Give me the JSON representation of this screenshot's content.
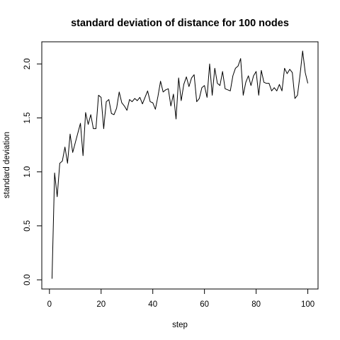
{
  "chart_data": {
    "type": "line",
    "title": "standard deviation of distance for 100 nodes",
    "xlabel": "step",
    "ylabel": "standard deviation",
    "xlim": [
      -2.96,
      103.96
    ],
    "ylim": [
      -0.085,
      2.205
    ],
    "grid": false,
    "legend": "none",
    "xticks": [
      {
        "value": 0,
        "label": "0"
      },
      {
        "value": 20,
        "label": "20"
      },
      {
        "value": 40,
        "label": "40"
      },
      {
        "value": 60,
        "label": "60"
      },
      {
        "value": 80,
        "label": "80"
      },
      {
        "value": 100,
        "label": "100"
      }
    ],
    "yticks": [
      {
        "value": 0.0,
        "label": "0.0"
      },
      {
        "value": 0.5,
        "label": "0.5"
      },
      {
        "value": 1.0,
        "label": "1.0"
      },
      {
        "value": 1.5,
        "label": "1.5"
      },
      {
        "value": 2.0,
        "label": "2.0"
      }
    ],
    "series": [
      {
        "color": "#000000",
        "x": [
          1,
          2,
          3,
          4,
          5,
          6,
          7,
          8,
          9,
          10,
          11,
          12,
          13,
          14,
          15,
          16,
          17,
          18,
          19,
          20,
          21,
          22,
          23,
          24,
          25,
          26,
          27,
          28,
          29,
          30,
          31,
          32,
          33,
          34,
          35,
          36,
          37,
          38,
          39,
          40,
          41,
          42,
          43,
          44,
          45,
          46,
          47,
          48,
          49,
          50,
          51,
          52,
          53,
          54,
          55,
          56,
          57,
          58,
          59,
          60,
          61,
          62,
          63,
          64,
          65,
          66,
          67,
          68,
          69,
          70,
          71,
          72,
          73,
          74,
          75,
          76,
          77,
          78,
          79,
          80,
          81,
          82,
          83,
          84,
          85,
          86,
          87,
          88,
          89,
          90,
          91,
          92,
          93,
          94,
          95,
          96,
          97,
          98,
          99,
          100
        ],
        "y": [
          0.01,
          0.99,
          0.77,
          1.08,
          1.1,
          1.23,
          1.08,
          1.35,
          1.18,
          1.27,
          1.36,
          1.45,
          1.15,
          1.55,
          1.44,
          1.53,
          1.4,
          1.4,
          1.71,
          1.69,
          1.4,
          1.65,
          1.67,
          1.54,
          1.53,
          1.59,
          1.74,
          1.64,
          1.61,
          1.57,
          1.67,
          1.65,
          1.68,
          1.66,
          1.69,
          1.63,
          1.69,
          1.75,
          1.65,
          1.64,
          1.58,
          1.7,
          1.84,
          1.74,
          1.76,
          1.77,
          1.61,
          1.72,
          1.49,
          1.87,
          1.66,
          1.81,
          1.88,
          1.79,
          1.87,
          1.9,
          1.65,
          1.68,
          1.78,
          1.8,
          1.69,
          2.0,
          1.71,
          1.96,
          1.82,
          1.8,
          1.93,
          1.77,
          1.76,
          1.75,
          1.89,
          1.96,
          1.98,
          2.05,
          1.71,
          1.83,
          1.89,
          1.8,
          1.89,
          1.93,
          1.71,
          1.94,
          1.83,
          1.82,
          1.82,
          1.75,
          1.78,
          1.75,
          1.81,
          1.75,
          1.96,
          1.91,
          1.95,
          1.92,
          1.68,
          1.71,
          1.9,
          2.12,
          1.92,
          1.82
        ]
      }
    ]
  }
}
